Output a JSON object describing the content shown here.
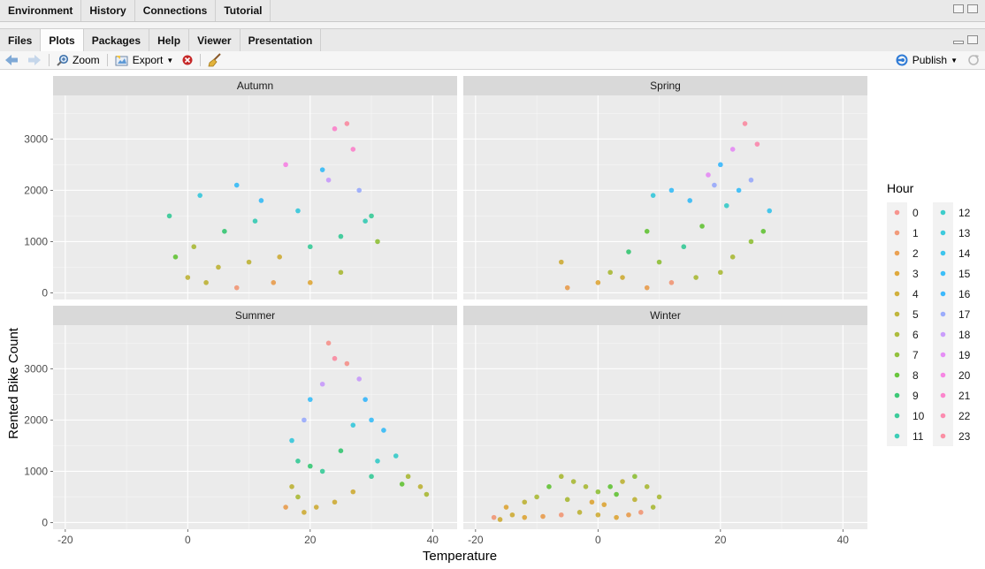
{
  "top_tabs": [
    "Environment",
    "History",
    "Connections",
    "Tutorial"
  ],
  "pane_tabs": [
    "Files",
    "Plots",
    "Packages",
    "Help",
    "Viewer",
    "Presentation"
  ],
  "active_pane_tab": "Plots",
  "toolbar": {
    "back_icon": "arrow-left-icon",
    "forward_icon": "arrow-right-icon",
    "zoom_label": "Zoom",
    "export_label": "Export",
    "remove_icon": "close-circle-icon",
    "clear_icon": "broom-icon",
    "publish_label": "Publish",
    "refresh_icon": "refresh-icon"
  },
  "colors": {
    "panel_bg": "#ebebeb",
    "strip_bg": "#d9d9d9",
    "grid": "#ffffff",
    "accent_blue": "#2f7bd6",
    "remove_red": "#d03030"
  },
  "chart_data": {
    "type": "scatter",
    "facet_by": "season",
    "facets": [
      "Autumn",
      "Spring",
      "Summer",
      "Winter"
    ],
    "xlabel": "Temperature",
    "ylabel": "Rented Bike Count",
    "xlim": [
      -20,
      42
    ],
    "ylim": [
      0,
      3600
    ],
    "xticks": [
      -20,
      0,
      20,
      40
    ],
    "yticks": [
      0,
      1000,
      2000,
      3000
    ],
    "grid": true,
    "legend": {
      "title": "Hour",
      "placement": "right",
      "entries": [
        "0",
        "1",
        "2",
        "3",
        "4",
        "5",
        "6",
        "7",
        "8",
        "9",
        "10",
        "11",
        "12",
        "13",
        "14",
        "15",
        "16",
        "17",
        "18",
        "19",
        "20",
        "21",
        "22",
        "23"
      ]
    },
    "hour_colors": [
      "#F8766D",
      "#F27D53",
      "#E7851E",
      "#D89000",
      "#C59900",
      "#AFA100",
      "#96A900",
      "#72B000",
      "#3BB700",
      "#00BB4E",
      "#00BF7D",
      "#00C1A3",
      "#00C0BE",
      "#00BCD6",
      "#00B6EB",
      "#00ADFA",
      "#00A5FF",
      "#7F96FF",
      "#BC81FF",
      "#E26EF7",
      "#F863DF",
      "#FF62C0",
      "#FF6A9A",
      "#FE6E8A"
    ],
    "series": [
      {
        "facet": "Autumn",
        "points_approx": [
          [
            -3,
            1500
          ],
          [
            2,
            1900
          ],
          [
            8,
            2100
          ],
          [
            12,
            1800
          ],
          [
            16,
            2500
          ],
          [
            22,
            2400
          ],
          [
            24,
            3200
          ],
          [
            26,
            3300
          ],
          [
            27,
            2800
          ],
          [
            28,
            2000
          ],
          [
            30,
            1500
          ],
          [
            31,
            1000
          ],
          [
            29,
            1400
          ],
          [
            25,
            1100
          ],
          [
            20,
            900
          ],
          [
            15,
            700
          ],
          [
            10,
            600
          ],
          [
            5,
            500
          ],
          [
            0,
            300
          ],
          [
            3,
            200
          ],
          [
            8,
            100
          ],
          [
            14,
            200
          ],
          [
            20,
            200
          ],
          [
            25,
            400
          ],
          [
            -2,
            700
          ],
          [
            1,
            900
          ],
          [
            6,
            1200
          ],
          [
            11,
            1400
          ],
          [
            18,
            1600
          ],
          [
            23,
            2200
          ]
        ]
      },
      {
        "facet": "Spring",
        "points_approx": [
          [
            -6,
            600
          ],
          [
            -5,
            100
          ],
          [
            0,
            200
          ],
          [
            2,
            400
          ],
          [
            5,
            800
          ],
          [
            8,
            1200
          ],
          [
            9,
            1900
          ],
          [
            12,
            2000
          ],
          [
            15,
            1800
          ],
          [
            18,
            2300
          ],
          [
            20,
            2500
          ],
          [
            22,
            2800
          ],
          [
            24,
            3300
          ],
          [
            26,
            2900
          ],
          [
            28,
            1600
          ],
          [
            27,
            1200
          ],
          [
            25,
            1000
          ],
          [
            22,
            700
          ],
          [
            20,
            400
          ],
          [
            16,
            300
          ],
          [
            12,
            200
          ],
          [
            8,
            100
          ],
          [
            4,
            300
          ],
          [
            10,
            600
          ],
          [
            14,
            900
          ],
          [
            17,
            1300
          ],
          [
            21,
            1700
          ],
          [
            23,
            2000
          ],
          [
            25,
            2200
          ],
          [
            19,
            2100
          ]
        ]
      },
      {
        "facet": "Summer",
        "points_approx": [
          [
            16,
            300
          ],
          [
            17,
            700
          ],
          [
            18,
            1200
          ],
          [
            17,
            1600
          ],
          [
            19,
            2000
          ],
          [
            20,
            2400
          ],
          [
            22,
            2700
          ],
          [
            23,
            3500
          ],
          [
            24,
            3200
          ],
          [
            26,
            3100
          ],
          [
            28,
            2800
          ],
          [
            29,
            2400
          ],
          [
            30,
            2000
          ],
          [
            32,
            1800
          ],
          [
            34,
            1300
          ],
          [
            36,
            900
          ],
          [
            38,
            700
          ],
          [
            39,
            550
          ],
          [
            35,
            750
          ],
          [
            30,
            900
          ],
          [
            27,
            600
          ],
          [
            24,
            400
          ],
          [
            21,
            300
          ],
          [
            19,
            200
          ],
          [
            22,
            1000
          ],
          [
            25,
            1400
          ],
          [
            27,
            1900
          ],
          [
            20,
            1100
          ],
          [
            18,
            500
          ],
          [
            31,
            1200
          ]
        ]
      },
      {
        "facet": "Winter",
        "points_approx": [
          [
            -17,
            100
          ],
          [
            -15,
            300
          ],
          [
            -12,
            400
          ],
          [
            -10,
            500
          ],
          [
            -8,
            700
          ],
          [
            -6,
            900
          ],
          [
            -4,
            800
          ],
          [
            -2,
            700
          ],
          [
            0,
            600
          ],
          [
            2,
            700
          ],
          [
            4,
            800
          ],
          [
            6,
            900
          ],
          [
            8,
            700
          ],
          [
            10,
            500
          ],
          [
            9,
            300
          ],
          [
            7,
            200
          ],
          [
            5,
            150
          ],
          [
            3,
            100
          ],
          [
            0,
            150
          ],
          [
            -3,
            200
          ],
          [
            -6,
            150
          ],
          [
            -9,
            120
          ],
          [
            -12,
            100
          ],
          [
            -14,
            150
          ],
          [
            -16,
            60
          ],
          [
            -1,
            400
          ],
          [
            1,
            350
          ],
          [
            6,
            450
          ],
          [
            -5,
            450
          ],
          [
            3,
            550
          ]
        ]
      }
    ]
  }
}
